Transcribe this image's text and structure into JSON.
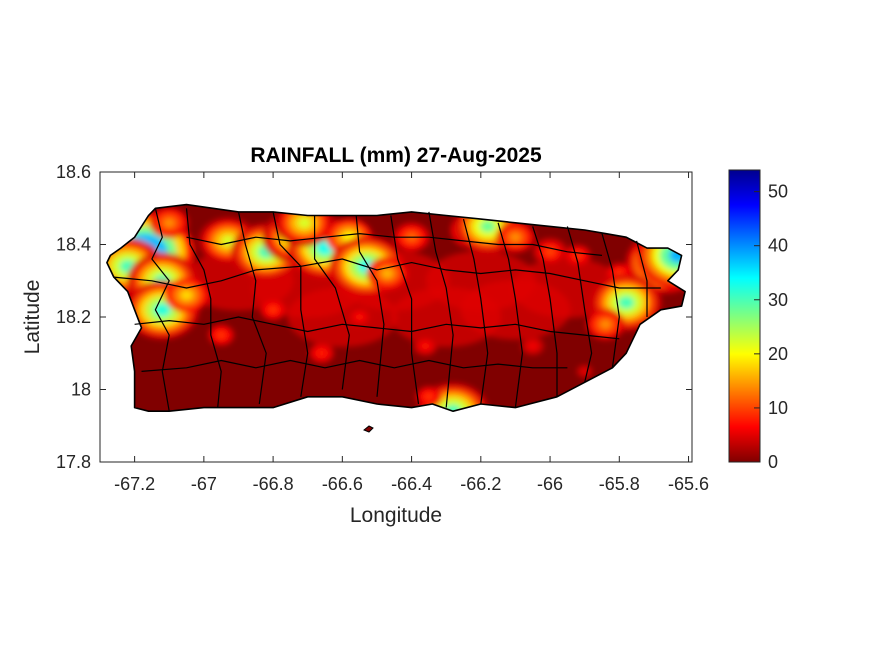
{
  "chart_data": {
    "type": "heatmap",
    "title": "RAINFALL (mm) 27-Aug-2025",
    "xlabel": "Longitude",
    "ylabel": "Latitude",
    "xlim": [
      -67.3,
      -65.59
    ],
    "ylim": [
      17.8,
      18.6
    ],
    "xticks": [
      -67.2,
      -67,
      -66.8,
      -66.6,
      -66.4,
      -66.2,
      -66,
      -65.8,
      -65.6
    ],
    "yticks": [
      17.8,
      18,
      18.2,
      18.4,
      18.6
    ],
    "colorbar": {
      "label_unit": "mm",
      "range": [
        0,
        54
      ],
      "ticks": [
        0,
        10,
        20,
        30,
        40,
        50
      ],
      "colormap": "jet-reversed"
    },
    "base_color": "#800000",
    "rain_cells": [
      {
        "lon": -67.17,
        "lat": 18.38,
        "mm": 50
      },
      {
        "lon": -67.22,
        "lat": 18.34,
        "mm": 30
      },
      {
        "lon": -67.12,
        "lat": 18.3,
        "mm": 30
      },
      {
        "lon": -67.12,
        "lat": 18.22,
        "mm": 32
      },
      {
        "lon": -67.05,
        "lat": 18.26,
        "mm": 18
      },
      {
        "lon": -67.1,
        "lat": 18.46,
        "mm": 14
      },
      {
        "lon": -66.93,
        "lat": 18.41,
        "mm": 22
      },
      {
        "lon": -66.82,
        "lat": 18.38,
        "mm": 30
      },
      {
        "lon": -66.74,
        "lat": 18.42,
        "mm": 25
      },
      {
        "lon": -66.65,
        "lat": 18.39,
        "mm": 33
      },
      {
        "lon": -66.71,
        "lat": 18.46,
        "mm": 22
      },
      {
        "lon": -66.58,
        "lat": 18.42,
        "mm": 20
      },
      {
        "lon": -66.53,
        "lat": 18.34,
        "mm": 33
      },
      {
        "lon": -66.47,
        "lat": 18.32,
        "mm": 16
      },
      {
        "lon": -66.4,
        "lat": 18.42,
        "mm": 12
      },
      {
        "lon": -66.22,
        "lat": 18.44,
        "mm": 20
      },
      {
        "lon": -66.18,
        "lat": 18.45,
        "mm": 28
      },
      {
        "lon": -66.1,
        "lat": 18.42,
        "mm": 14
      },
      {
        "lon": -66.0,
        "lat": 18.38,
        "mm": 10
      },
      {
        "lon": -65.92,
        "lat": 18.37,
        "mm": 9
      },
      {
        "lon": -65.8,
        "lat": 18.32,
        "mm": 9
      },
      {
        "lon": -65.67,
        "lat": 18.35,
        "mm": 34
      },
      {
        "lon": -65.63,
        "lat": 18.37,
        "mm": 38
      },
      {
        "lon": -65.78,
        "lat": 18.24,
        "mm": 30
      },
      {
        "lon": -65.84,
        "lat": 18.18,
        "mm": 14
      },
      {
        "lon": -66.8,
        "lat": 18.22,
        "mm": 9
      },
      {
        "lon": -66.95,
        "lat": 18.15,
        "mm": 9
      },
      {
        "lon": -66.66,
        "lat": 18.1,
        "mm": 8
      },
      {
        "lon": -66.55,
        "lat": 18.2,
        "mm": 7
      },
      {
        "lon": -66.36,
        "lat": 18.12,
        "mm": 7
      },
      {
        "lon": -66.28,
        "lat": 17.94,
        "mm": 30
      },
      {
        "lon": -66.35,
        "lat": 17.98,
        "mm": 9
      },
      {
        "lon": -66.05,
        "lat": 18.12,
        "mm": 6
      },
      {
        "lon": -65.9,
        "lat": 18.05,
        "mm": 5
      }
    ]
  }
}
